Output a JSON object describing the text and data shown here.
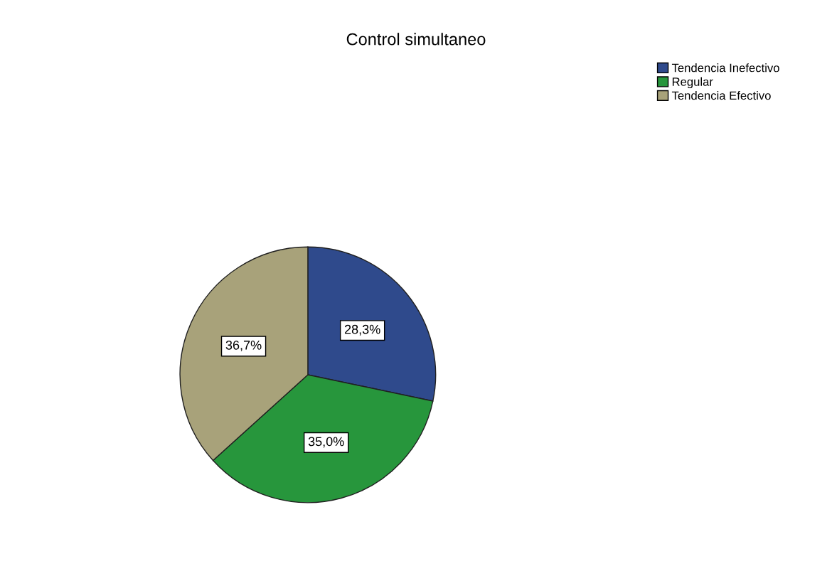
{
  "chart_data": {
    "type": "pie",
    "title": "Control simultaneo",
    "categories": [
      "Tendencia Inefectivo",
      "Regular",
      "Tendencia Efectivo"
    ],
    "values": [
      28.3,
      35.0,
      36.7
    ],
    "colors": [
      "#2f4a8c",
      "#27963c",
      "#a8a27a"
    ],
    "value_labels": [
      "28,3%",
      "35,0%",
      "36,7%"
    ],
    "legend": "top right"
  }
}
